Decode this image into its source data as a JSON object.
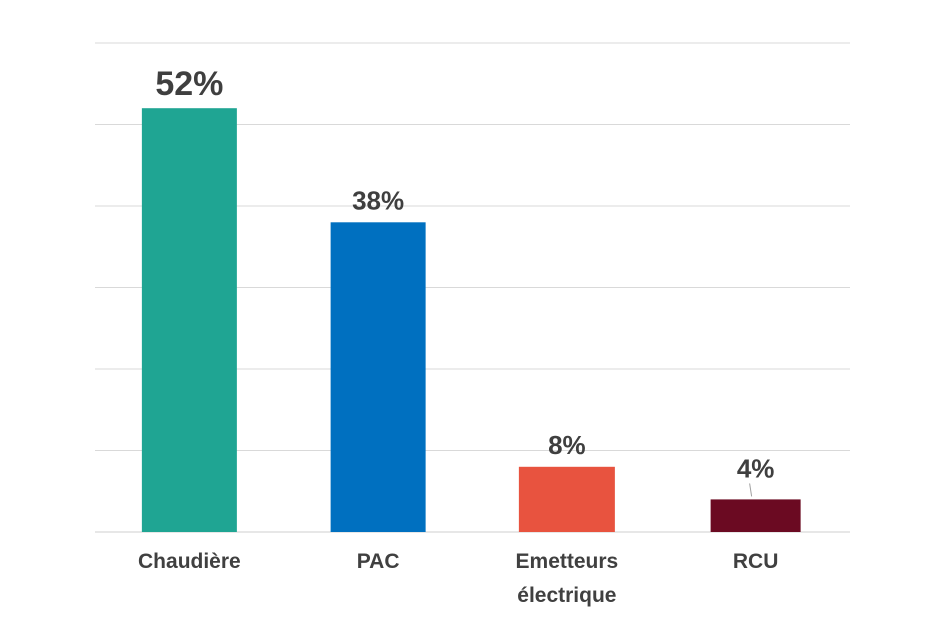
{
  "chart_data": {
    "type": "bar",
    "categories": [
      [
        "Chaudière"
      ],
      [
        "PAC"
      ],
      [
        "Emetteurs",
        "électrique"
      ],
      [
        "RCU"
      ]
    ],
    "values": [
      52,
      38,
      8,
      4
    ],
    "value_labels": [
      "52%",
      "38%",
      "8%",
      "4%"
    ],
    "colors": [
      "#1fa593",
      "#0070c0",
      "#e8533f",
      "#6b0a22"
    ],
    "ylim": [
      0,
      60
    ],
    "grid": true,
    "legend": "none"
  }
}
